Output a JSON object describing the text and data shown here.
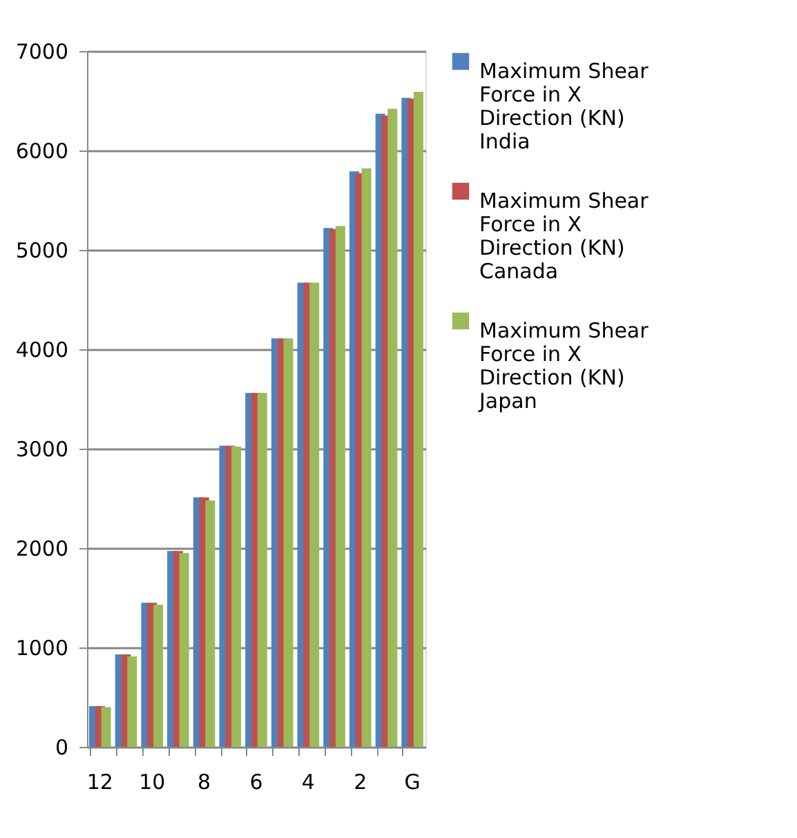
{
  "chart_data": {
    "type": "bar",
    "categories": [
      "12",
      null,
      "10",
      null,
      "8",
      null,
      "6",
      null,
      "4",
      null,
      "2",
      null,
      "G"
    ],
    "series": [
      {
        "name": "Maximum Shear Force in X Direction (KN) India",
        "color": "#4f81bd",
        "values": [
          410,
          930,
          1450,
          1970,
          2510,
          3030,
          3560,
          4110,
          4670,
          5220,
          5790,
          6370,
          6530
        ]
      },
      {
        "name": "Maximum Shear Force in X Direction (KN) Canada",
        "color": "#c0504d",
        "values": [
          410,
          930,
          1450,
          1970,
          2510,
          3030,
          3560,
          4110,
          4670,
          5210,
          5770,
          6350,
          6520
        ]
      },
      {
        "name": "Maximum Shear Force in X Direction (KN) Japan",
        "color": "#9bbb59",
        "values": [
          400,
          910,
          1430,
          1950,
          2480,
          3020,
          3560,
          4110,
          4670,
          5240,
          5820,
          6420,
          6590
        ]
      }
    ],
    "ylim": [
      0,
      7000
    ],
    "yticks": [
      0,
      1000,
      2000,
      3000,
      4000,
      5000,
      6000,
      7000
    ],
    "grid": "y",
    "legend": "right"
  }
}
